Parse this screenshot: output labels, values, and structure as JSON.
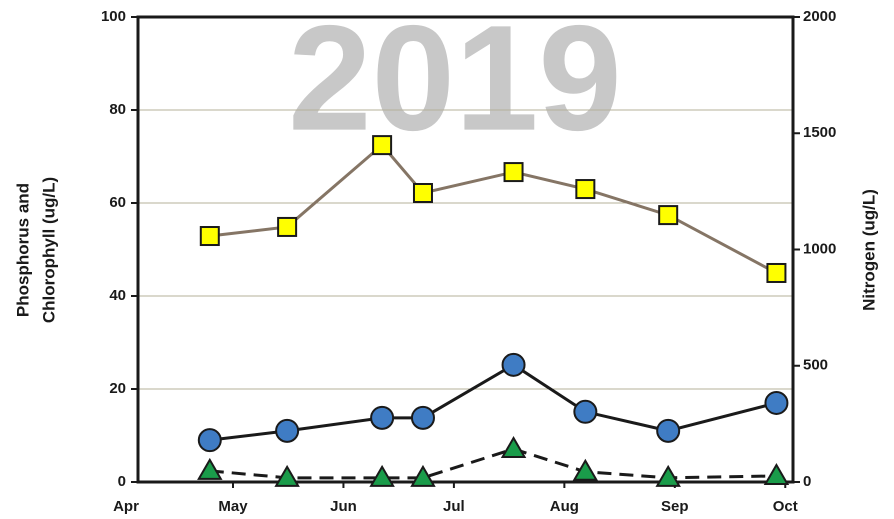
{
  "chart_data": {
    "type": "line",
    "title": "2019",
    "ylabel": [
      "Phosphorus and",
      "Chlorophyll (ug/L)"
    ],
    "y2label": "Nitrogen (ug/L)",
    "x": [
      4.79,
      5.49,
      6.35,
      6.72,
      7.54,
      8.19,
      8.94,
      9.92
    ],
    "xlim": [
      4.14,
      10.07
    ],
    "xticks": [
      {
        "value": 4,
        "label": "Apr"
      },
      {
        "value": 5,
        "label": "May"
      },
      {
        "value": 6,
        "label": "Jun"
      },
      {
        "value": 7,
        "label": "Jul"
      },
      {
        "value": 8,
        "label": "Aug"
      },
      {
        "value": 9,
        "label": "Sep"
      },
      {
        "value": 10,
        "label": "Oct"
      }
    ],
    "ylim": [
      0,
      100
    ],
    "yticks": [
      0,
      20,
      40,
      60,
      80,
      100
    ],
    "y2lim": [
      0,
      2000
    ],
    "y2ticks": [
      0,
      500,
      1000,
      1500,
      2000
    ],
    "grid": true,
    "series": [
      {
        "color": "#ffff00",
        "line_color": "#857565",
        "marker": "square",
        "axis": "y2",
        "dash": false,
        "values": [
          1058,
          1097,
          1449,
          1243,
          1333,
          1260,
          1148,
          899
        ]
      },
      {
        "color": "#3f7cc4",
        "line_color": "#1a1a1a",
        "marker": "circle",
        "dash": false,
        "values": [
          9.0,
          11.0,
          13.8,
          13.8,
          25.2,
          15.1,
          11.0,
          17.0
        ]
      },
      {
        "color": "#1a9c4a",
        "line_color": "#1a1a1a",
        "marker": "triangle",
        "dash": true,
        "values": [
          2.4,
          0.9,
          0.9,
          0.9,
          7.1,
          2.2,
          0.9,
          1.3
        ]
      }
    ]
  }
}
